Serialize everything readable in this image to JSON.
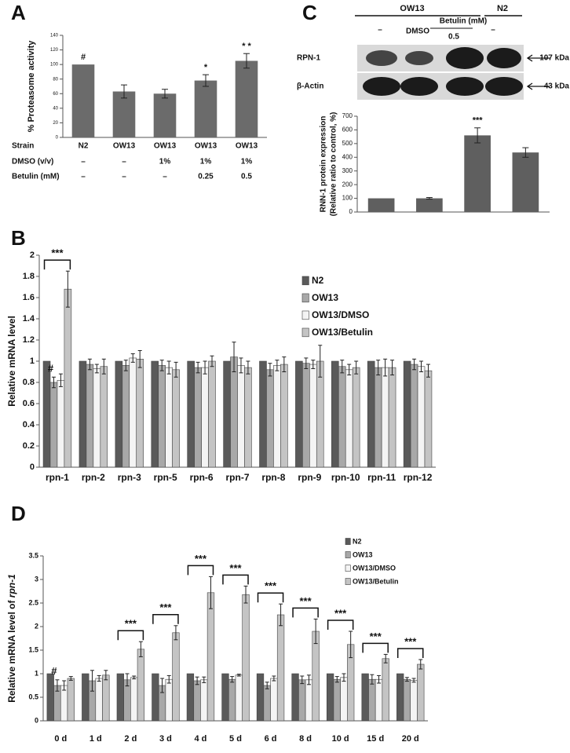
{
  "chart_data": [
    {
      "type": "bar",
      "panel": "A",
      "ylabel": "% Proteasome activity",
      "categories": [
        "N2",
        "OW13",
        "OW13",
        "OW13",
        "OW13"
      ],
      "values": [
        100,
        63,
        60,
        78,
        105
      ],
      "errors": [
        0,
        9,
        6,
        8,
        10
      ],
      "color": "#6b6b6b",
      "annotations": [
        "#",
        null,
        null,
        "*",
        "* *"
      ],
      "ylim": [
        0,
        140
      ],
      "yticks": [
        0,
        20,
        40,
        60,
        80,
        100,
        120,
        140
      ],
      "xlabel": "Strain",
      "table_rows": [
        {
          "label": "DMSO (v/v)",
          "cells": [
            "–",
            "–",
            "1%",
            "1%",
            "1%"
          ]
        },
        {
          "label": "Betulin (mM)",
          "cells": [
            "–",
            "–",
            "–",
            "0.25",
            "0.5"
          ]
        }
      ]
    },
    {
      "type": "bar",
      "panel": "C",
      "ylabel": "RNN-1 protein expression",
      "ylabel2": "(Relative ratio to control, %)",
      "categories": [
        null,
        null,
        null,
        null
      ],
      "values": [
        100,
        100,
        560,
        435
      ],
      "errors": [
        0,
        6,
        55,
        35
      ],
      "color": "#5f5f5f",
      "annotations": [
        null,
        null,
        "***",
        null
      ],
      "ylim": [
        0,
        700
      ],
      "yticks": [
        0,
        100,
        200,
        300,
        400,
        500,
        600,
        700
      ],
      "blot": {
        "group_labels": [
          "OW13",
          "N2"
        ],
        "lane_labels": [
          "–",
          "DMSO",
          "Betulin (mM)",
          "–"
        ],
        "dose": "0.5",
        "rows": [
          {
            "label": "RPN-1",
            "size": "107 kDa"
          },
          {
            "label": "β-Actin",
            "size": "43 kDa"
          }
        ]
      }
    },
    {
      "type": "bar",
      "panel": "B",
      "ylabel": "Relative mRNA level",
      "categories": [
        "rpn-1",
        "rpn-2",
        "rpn-3",
        "rpn-5",
        "rpn-6",
        "rpn-7",
        "rpn-8",
        "rpn-9",
        "rpn-10",
        "rpn-11",
        "rpn-12"
      ],
      "series": [
        {
          "name": "N2",
          "color": "#5a5a5a",
          "values": [
            1,
            1,
            1,
            1,
            1,
            1,
            1,
            1,
            1,
            1,
            1
          ],
          "errors": [
            0,
            0,
            0,
            0,
            0,
            0,
            0,
            0,
            0,
            0,
            0
          ]
        },
        {
          "name": "OW13",
          "color": "#a8a8a8",
          "values": [
            0.8,
            0.97,
            0.96,
            0.96,
            0.94,
            1.04,
            0.92,
            0.98,
            0.95,
            0.94,
            0.97
          ],
          "errors": [
            0.05,
            0.05,
            0.05,
            0.05,
            0.05,
            0.14,
            0.06,
            0.05,
            0.06,
            0.07,
            0.05
          ]
        },
        {
          "name": "OW13/DMSO",
          "color": "#f4f4f4",
          "values": [
            0.82,
            0.93,
            1.03,
            0.94,
            0.94,
            0.96,
            0.96,
            0.97,
            0.92,
            0.94,
            0.95
          ],
          "errors": [
            0.06,
            0.04,
            0.04,
            0.06,
            0.06,
            0.07,
            0.05,
            0.04,
            0.05,
            0.08,
            0.05
          ]
        },
        {
          "name": "OW13/Betulin",
          "color": "#c4c4c4",
          "values": [
            1.68,
            0.95,
            1.02,
            0.92,
            1.0,
            0.94,
            0.97,
            1.0,
            0.94,
            0.94,
            0.91
          ],
          "errors": [
            0.17,
            0.07,
            0.08,
            0.07,
            0.05,
            0.06,
            0.07,
            0.15,
            0.06,
            0.07,
            0.06
          ]
        }
      ],
      "brackets": [
        "***",
        null,
        null,
        null,
        null,
        null,
        null,
        null,
        null,
        null,
        null
      ],
      "annotations": [
        "#",
        null,
        null,
        null,
        null,
        null,
        null,
        null,
        null,
        null,
        null
      ],
      "ylim": [
        0,
        2
      ],
      "yticks": [
        0,
        0.2,
        0.4,
        0.6,
        0.8,
        1,
        1.2,
        1.4,
        1.6,
        1.8,
        2
      ]
    },
    {
      "type": "bar",
      "panel": "D",
      "ylabel": "Relative mRNA level of",
      "ylabel_italic": "rpn-1",
      "categories": [
        "0 d",
        "1 d",
        "2 d",
        "3 d",
        "4 d",
        "5 d",
        "6 d",
        "8 d",
        "10 d",
        "15 d",
        "20 d"
      ],
      "series": [
        {
          "name": "N2",
          "color": "#5a5a5a",
          "values": [
            1,
            1,
            1,
            1,
            1,
            1,
            1,
            1,
            1,
            1,
            1
          ],
          "errors": [
            0,
            0,
            0,
            0,
            0,
            0,
            0,
            0,
            0,
            0,
            0
          ]
        },
        {
          "name": "OW13",
          "color": "#a8a8a8",
          "values": [
            0.75,
            0.85,
            0.87,
            0.75,
            0.85,
            0.88,
            0.75,
            0.87,
            0.88,
            0.88,
            0.88
          ],
          "errors": [
            0.12,
            0.22,
            0.13,
            0.15,
            0.08,
            0.06,
            0.07,
            0.08,
            0.06,
            0.1,
            0.04
          ]
        },
        {
          "name": "OW13/DMSO",
          "color": "#f4f4f4",
          "values": [
            0.75,
            0.9,
            0.92,
            0.88,
            0.87,
            0.97,
            0.9,
            0.87,
            0.92,
            0.88,
            0.86
          ],
          "errors": [
            0.1,
            0.06,
            0.03,
            0.08,
            0.06,
            0.02,
            0.05,
            0.1,
            0.08,
            0.08,
            0.04
          ]
        },
        {
          "name": "OW13/Betulin",
          "color": "#c4c4c4",
          "values": [
            0.9,
            0.97,
            1.52,
            1.87,
            2.72,
            2.68,
            2.25,
            1.9,
            1.62,
            1.32,
            1.2
          ],
          "errors": [
            0.04,
            0.1,
            0.16,
            0.15,
            0.34,
            0.18,
            0.23,
            0.26,
            0.28,
            0.09,
            0.1
          ]
        }
      ],
      "brackets": [
        null,
        null,
        "***",
        "***",
        "***",
        "***",
        "***",
        "***",
        "***",
        "***",
        "***"
      ],
      "annotations": [
        "#",
        null,
        null,
        null,
        null,
        null,
        null,
        null,
        null,
        null,
        null
      ],
      "ylim": [
        0,
        3.5
      ],
      "yticks": [
        0,
        0.5,
        1,
        1.5,
        2,
        2.5,
        3,
        3.5
      ]
    }
  ]
}
